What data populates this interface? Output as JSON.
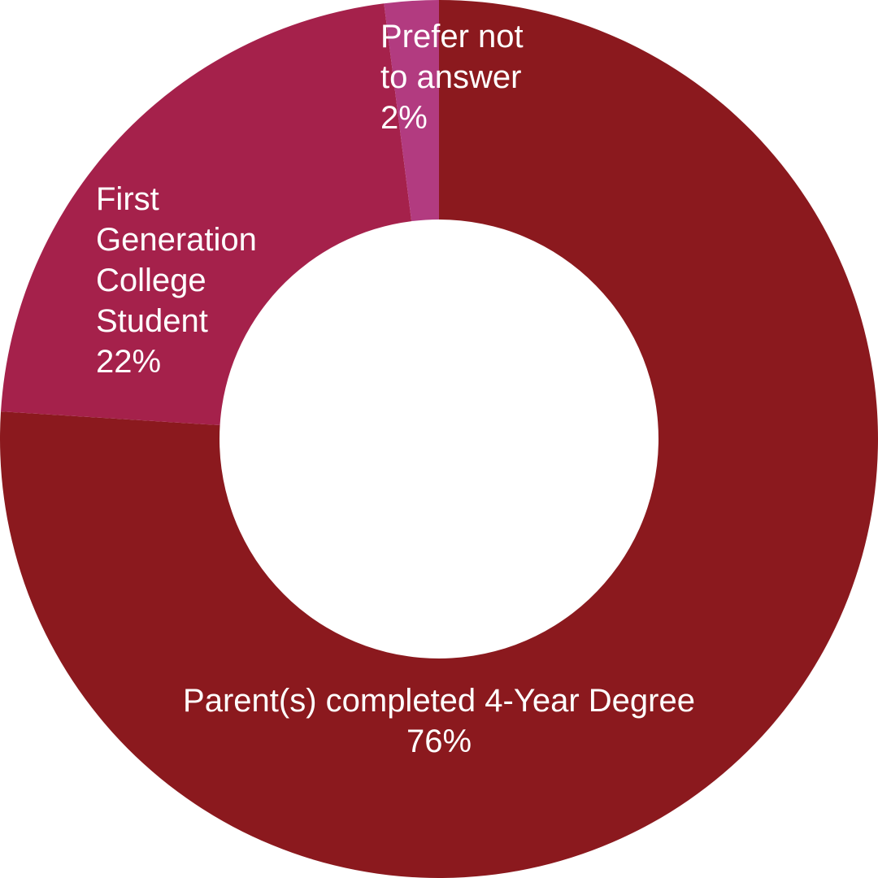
{
  "chart_data": {
    "type": "donut",
    "categories": [
      "Parent(s) completed 4-Year Degree",
      "First Generation College Student",
      "Prefer not to answer"
    ],
    "values": [
      76,
      22,
      2
    ],
    "value_labels": [
      "76%",
      "22%",
      "2%"
    ],
    "colors": [
      "#8b191e",
      "#a5214b",
      "#b23b80"
    ]
  }
}
